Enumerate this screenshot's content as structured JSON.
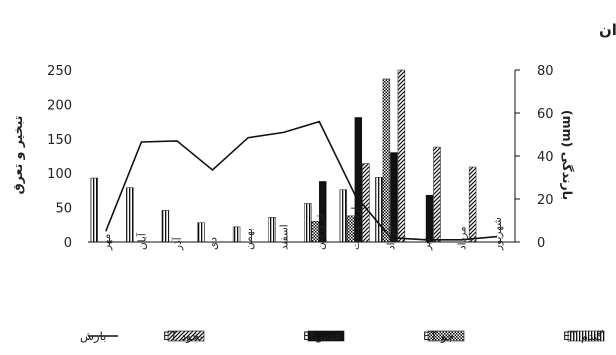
{
  "chart_data": {
    "type": "bar",
    "title": "شهرستان داران",
    "ylabel_left": "تبخیر و تعرق",
    "ylabel_right": "بارندگی (mm)",
    "ylim_left": [
      0,
      250
    ],
    "ylim_right": [
      0,
      80
    ],
    "yticks_left": [
      "0",
      "50",
      "100",
      "150",
      "200",
      "250"
    ],
    "yticks_right": [
      "0",
      "20",
      "40",
      "60",
      "80"
    ],
    "categories": [
      "مهر",
      "آبان",
      "آذر",
      "دی",
      "بهمن",
      "اسفند",
      "فروردین",
      "اردیبهشت",
      "خرداد",
      "تیر",
      "مرداد",
      "شهریور"
    ],
    "series": [
      {
        "name": "گندم ET",
        "type": "bar",
        "pattern": "vertical-lines",
        "values": [
          93,
          79,
          46,
          28,
          22,
          36,
          56,
          76,
          94,
          0,
          0,
          0
        ]
      },
      {
        "name": "جو ET",
        "type": "bar",
        "pattern": "dots",
        "values": [
          0,
          0,
          0,
          0,
          0,
          0,
          30,
          38,
          237,
          0,
          0,
          0
        ]
      },
      {
        "name": "عدسEt",
        "type": "bar",
        "pattern": "solid",
        "values": [
          0,
          0,
          0,
          0,
          0,
          0,
          88,
          181,
          130,
          68,
          0,
          0
        ]
      },
      {
        "name": "نخود ET",
        "type": "bar",
        "pattern": "diagonal",
        "values": [
          0,
          0,
          0,
          0,
          0,
          0,
          0,
          114,
          250,
          138,
          109,
          0
        ]
      },
      {
        "name": "بارش",
        "type": "line",
        "axis": "right",
        "values": [
          5,
          46.5,
          47,
          33.5,
          48.5,
          51,
          56,
          22,
          2,
          1,
          1,
          2.5
        ]
      }
    ],
    "colors": {
      "bar": "#111111",
      "line": "#111111"
    }
  }
}
